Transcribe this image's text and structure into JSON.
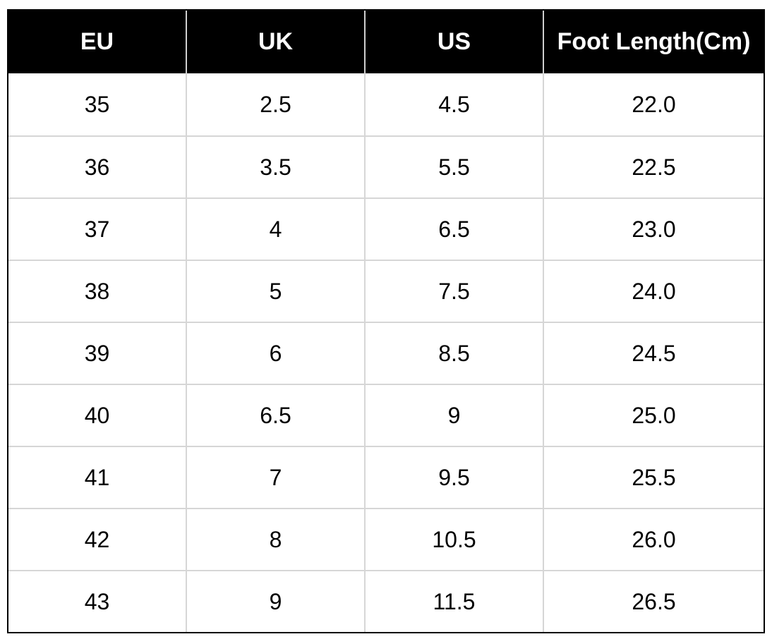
{
  "table": {
    "headers": [
      "EU",
      "UK",
      "US",
      "Foot Length(Cm)"
    ],
    "rows": [
      [
        "35",
        "2.5",
        "4.5",
        "22.0"
      ],
      [
        "36",
        "3.5",
        "5.5",
        "22.5"
      ],
      [
        "37",
        "4",
        "6.5",
        "23.0"
      ],
      [
        "38",
        "5",
        "7.5",
        "24.0"
      ],
      [
        "39",
        "6",
        "8.5",
        "24.5"
      ],
      [
        "40",
        "6.5",
        "9",
        "25.0"
      ],
      [
        "41",
        "7",
        "9.5",
        "25.5"
      ],
      [
        "42",
        "8",
        "10.5",
        "26.0"
      ],
      [
        "43",
        "9",
        "11.5",
        "26.5"
      ]
    ]
  },
  "colors": {
    "header_background": "#000000",
    "header_text": "#ffffff",
    "grid_line": "#d6d6d6",
    "body_text": "#000000"
  }
}
